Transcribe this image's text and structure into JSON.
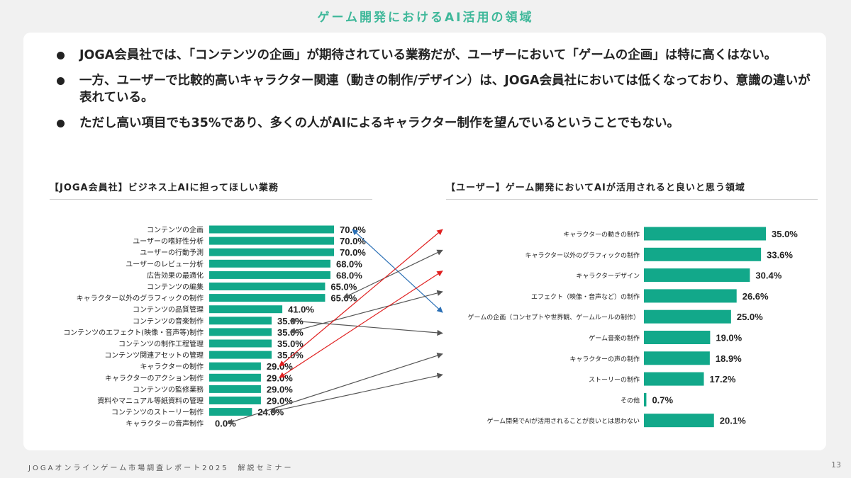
{
  "slide": {
    "title": "ゲーム開発におけるAI活用の領域",
    "footer": "JOGAオンラインゲーム市場調査レポート2025　解説セミナー",
    "page_number": "13"
  },
  "bullets": [
    "JOGA会員社では、「コンテンツの企画」が期待されている業務だが、ユーザーにおいて「ゲームの企画」は特に高くはない。",
    "一方、ユーザーで比較的高いキャラクター関連（動きの制作/デザイン）は、JOGA会員社においては低くなっており、意識の違いが表れている。",
    "ただし高い項目でも35%であり、多くの人がAIによるキャラクター制作を望んでいるということでもない。"
  ],
  "colors": {
    "title": "#3fb89a",
    "bar": "#12a88a",
    "arrow_gray": "#555555",
    "arrow_red": "#e02020",
    "arrow_blue": "#2a6fb5"
  },
  "chart_data": [
    {
      "type": "bar",
      "orientation": "horizontal",
      "title": "【JOGA会員社】ビジネス上AIに担ってほしい業務",
      "categories": [
        "コンテンツの企画",
        "ユーザーの嗜好性分析",
        "ユーザーの行動予測",
        "ユーザーのレビュー分析",
        "広告効果の最適化",
        "コンテンツの編集",
        "キャラクター以外のグラフィックの制作",
        "コンテンツの品質管理",
        "コンテンツの音楽制作",
        "コンテンツのエフェクト(映像・音声等)制作",
        "コンテンツの制作工程管理",
        "コンテンツ関連アセットの管理",
        "キャラクターの制作",
        "キャラクターのアクション制作",
        "コンテンツの監修業務",
        "資料やマニュアル等紙資料の管理",
        "コンテンツのストーリー制作",
        "キャラクターの音声制作"
      ],
      "values": [
        70.0,
        70.0,
        70.0,
        68.0,
        68.0,
        65.0,
        65.0,
        41.0,
        35.0,
        35.0,
        35.0,
        35.0,
        29.0,
        29.0,
        29.0,
        29.0,
        24.0,
        0.0
      ],
      "labels": [
        "70.0%",
        "70.0%",
        "70.0%",
        "68.0%",
        "68.0%",
        "65.0%",
        "65.0%",
        "41.0%",
        "35.0%",
        "35.0%",
        "35.0%",
        "35.0%",
        "29.0%",
        "29.0%",
        "29.0%",
        "29.0%",
        "24.0%",
        "0.0%"
      ],
      "unit": "%"
    },
    {
      "type": "bar",
      "orientation": "horizontal",
      "title": "【ユーザー】ゲーム開発においてAIが活用されると良いと思う領域",
      "categories": [
        "キャラクターの動きの制作",
        "キャラクター以外のグラフィックの制作",
        "キャラクターデザイン",
        "エフェクト（映像・音声など）の制作",
        "ゲームの企画（コンセプトや世界観、ゲームルールの制作）",
        "ゲーム音楽の制作",
        "キャラクターの声の制作",
        "ストーリーの制作",
        "その他",
        "ゲーム開発でAIが活用されることが良いとは思わない"
      ],
      "values": [
        35.0,
        33.6,
        30.4,
        26.6,
        25.0,
        19.0,
        18.9,
        17.2,
        0.7,
        20.1
      ],
      "labels": [
        "35.0%",
        "33.6%",
        "30.4%",
        "26.6%",
        "25.0%",
        "19.0%",
        "18.9%",
        "17.2%",
        "0.7%",
        "20.1%"
      ],
      "unit": "%"
    }
  ],
  "connectors": [
    {
      "from_left": 0,
      "to_right": 4,
      "color": "blue"
    },
    {
      "from_left": 6,
      "to_right": 1,
      "color": "gray"
    },
    {
      "from_left": 8,
      "to_right": 5,
      "color": "gray"
    },
    {
      "from_left": 9,
      "to_right": 3,
      "color": "gray"
    },
    {
      "from_left": 12,
      "to_right": 0,
      "color": "red"
    },
    {
      "from_left": 13,
      "to_right": 2,
      "color": "red"
    },
    {
      "from_left": 16,
      "to_right": 7,
      "color": "gray"
    },
    {
      "from_left": 17,
      "to_right": 6,
      "color": "gray"
    }
  ]
}
